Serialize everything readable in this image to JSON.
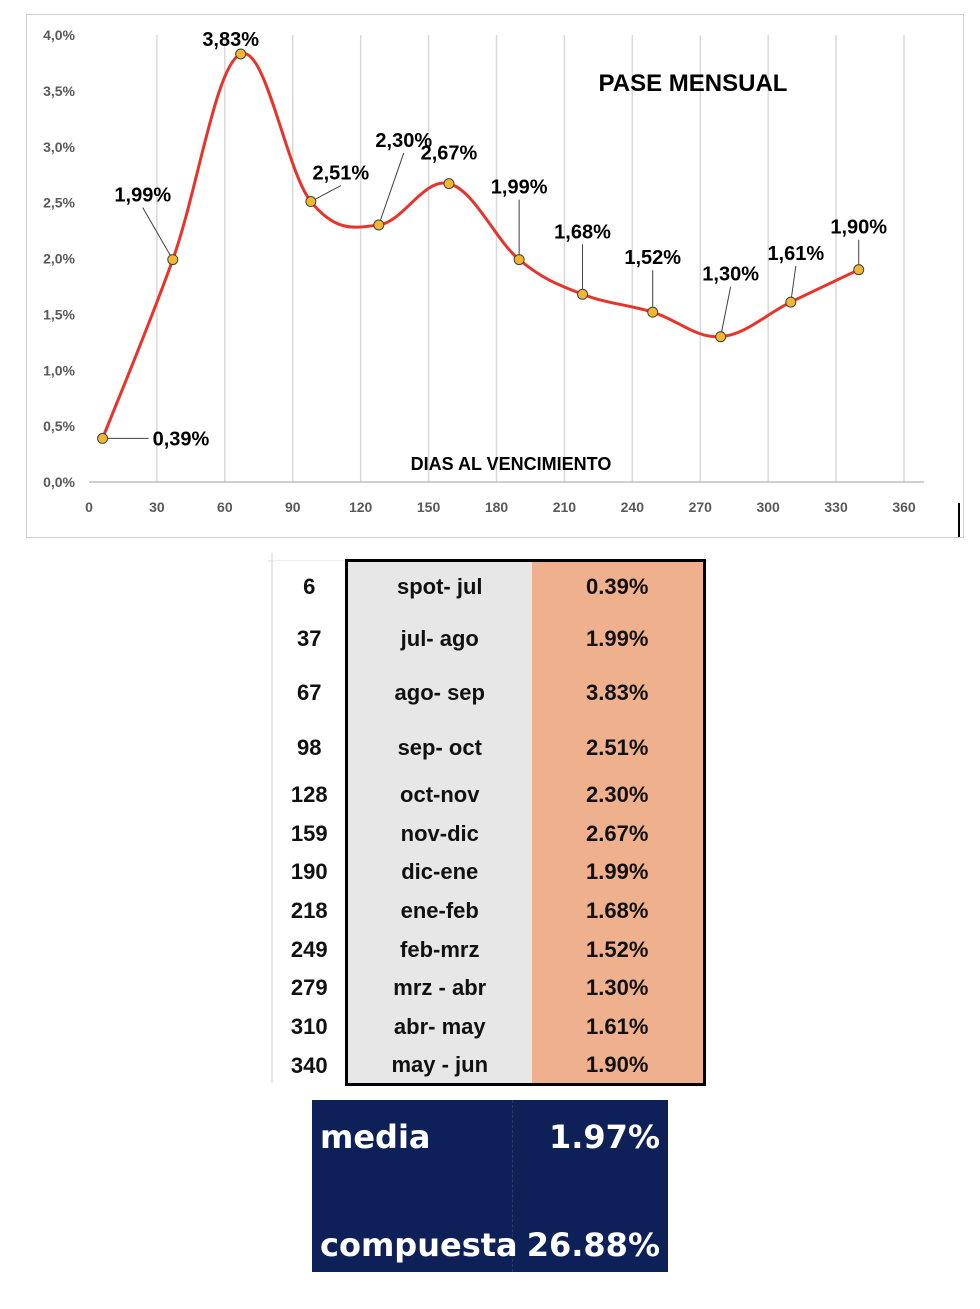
{
  "colors": {
    "line": "#e8332a",
    "marker": "#f2b630",
    "grid": "#d9d9d9",
    "rate_bg": "#efb08d",
    "period_bg": "#e7e7e7",
    "summary_bg": "#0d2158"
  },
  "chart_data": {
    "type": "line",
    "title": "PASE MENSUAL",
    "xlabel": "DIAS AL VENCIMIENTO",
    "ylabel": "",
    "xlim": [
      0,
      360
    ],
    "ylim": [
      0,
      4.0
    ],
    "x_ticks": [
      0,
      30,
      60,
      90,
      120,
      150,
      180,
      210,
      240,
      270,
      300,
      330,
      360
    ],
    "x_tick_labels": [
      "0",
      "30",
      "60",
      "90",
      "120",
      "150",
      "180",
      "210",
      "240",
      "270",
      "300",
      "330",
      "360"
    ],
    "y_ticks": [
      0,
      0.5,
      1.0,
      1.5,
      2.0,
      2.5,
      3.0,
      3.5,
      4.0
    ],
    "y_tick_labels": [
      "0,0%",
      "0,5%",
      "1,0%",
      "1,5%",
      "2,0%",
      "2,5%",
      "3,0%",
      "3,5%",
      "4,0%"
    ],
    "grid": true,
    "smooth": true,
    "series": [
      {
        "name": "Pase mensual",
        "x": [
          6,
          37,
          67,
          98,
          128,
          159,
          190,
          218,
          249,
          279,
          310,
          340
        ],
        "y": [
          0.39,
          1.99,
          3.83,
          2.51,
          2.3,
          2.67,
          1.99,
          1.68,
          1.52,
          1.3,
          1.61,
          1.9
        ],
        "labels": [
          "0,39%",
          "1,99%",
          "3,83%",
          "2,51%",
          "2,30%",
          "2,67%",
          "1,99%",
          "1,68%",
          "1,52%",
          "1,30%",
          "1,61%",
          "1,90%"
        ]
      }
    ]
  },
  "table": {
    "rows": [
      {
        "days": "6",
        "period": "spot- jul",
        "rate": "0.39%"
      },
      {
        "days": "37",
        "period": "jul- ago",
        "rate": "1.99%"
      },
      {
        "days": "67",
        "period": "ago- sep",
        "rate": "3.83%"
      },
      {
        "days": "98",
        "period": "sep- oct",
        "rate": "2.51%"
      },
      {
        "days": "128",
        "period": "oct-nov",
        "rate": "2.30%"
      },
      {
        "days": "159",
        "period": "nov-dic",
        "rate": "2.67%"
      },
      {
        "days": "190",
        "period": "dic-ene",
        "rate": "1.99%"
      },
      {
        "days": "218",
        "period": "ene-feb",
        "rate": "1.68%"
      },
      {
        "days": "249",
        "period": "feb-mrz",
        "rate": "1.52%"
      },
      {
        "days": "279",
        "period": "mrz - abr",
        "rate": "1.30%"
      },
      {
        "days": "310",
        "period": "abr- may",
        "rate": "1.61%"
      },
      {
        "days": "340",
        "period": "may - jun",
        "rate": "1.90%"
      }
    ]
  },
  "summary": {
    "media_label": "media",
    "media_value": "1.97%",
    "compuesta_label": "compuesta",
    "compuesta_value": "26.88%"
  }
}
